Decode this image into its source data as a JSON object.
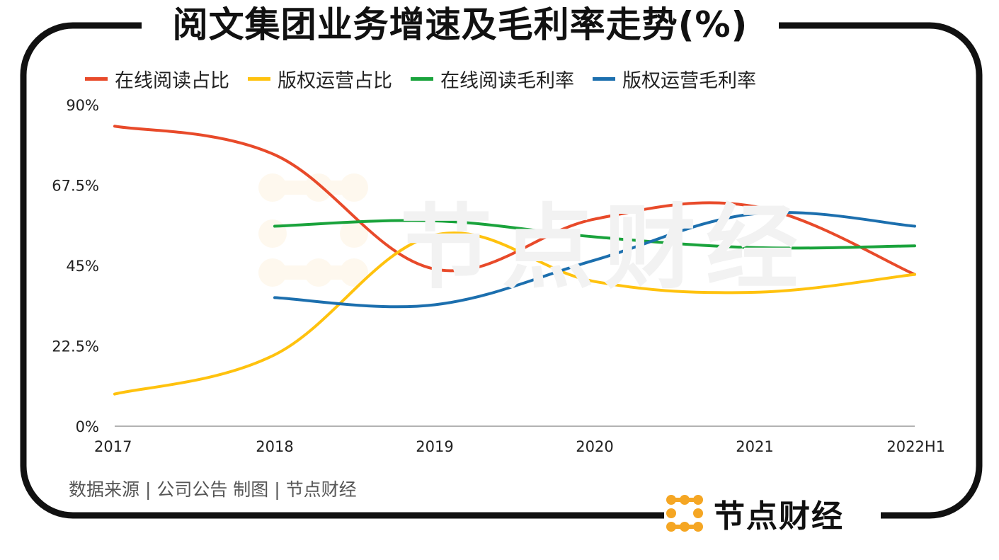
{
  "chart_data": {
    "type": "line",
    "title": "阅文集团业务增速及毛利率走势(%)",
    "categories": [
      "2017",
      "2018",
      "2019",
      "2020",
      "2021",
      "2022H1"
    ],
    "ylim": [
      0,
      90
    ],
    "yticks": [
      0,
      22.5,
      45,
      67.5,
      90
    ],
    "ytick_labels": [
      "0%",
      "22.5%",
      "45%",
      "67.5%",
      "90%"
    ],
    "series": [
      {
        "name": "在线阅读占比",
        "color": "#e84a2a",
        "values": [
          84,
          76,
          44,
          58,
          61.5,
          42.5
        ]
      },
      {
        "name": "版权运营占比",
        "color": "#ffc20e",
        "values": [
          9,
          20,
          53.5,
          40.5,
          37.5,
          42.5
        ]
      },
      {
        "name": "在线阅读毛利率",
        "color": "#1aa33c",
        "values": [
          null,
          56,
          57.5,
          53,
          50,
          50.5
        ]
      },
      {
        "name": "版权运营毛利率",
        "color": "#1c6fae",
        "values": [
          null,
          36,
          34,
          46.5,
          59.5,
          56
        ]
      }
    ],
    "legend_position": "top-left"
  },
  "source_note": "数据来源 | 公司公告  制图 | 节点财经",
  "brand": {
    "name": "节点财经",
    "logo_color": "#f5a623"
  },
  "watermark": "节点财经"
}
